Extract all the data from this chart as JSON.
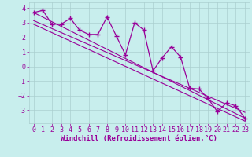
{
  "x_data": [
    0,
    1,
    2,
    3,
    4,
    5,
    6,
    7,
    8,
    9,
    10,
    11,
    12,
    13,
    14,
    15,
    16,
    17,
    18,
    19,
    20,
    21,
    22,
    23
  ],
  "y_main": [
    3.7,
    3.85,
    2.9,
    2.9,
    3.3,
    2.5,
    2.2,
    2.2,
    3.4,
    2.1,
    0.8,
    3.0,
    2.5,
    -0.3,
    0.6,
    1.35,
    0.65,
    -1.5,
    -1.55,
    -2.2,
    -3.1,
    -2.5,
    -2.7,
    -3.55
  ],
  "reg_line1_x": [
    0,
    23
  ],
  "reg_line1_y": [
    3.7,
    -3.55
  ],
  "reg_line2_x": [
    0,
    23
  ],
  "reg_line2_y": [
    3.15,
    -3.15
  ],
  "reg_line3_x": [
    0,
    23
  ],
  "reg_line3_y": [
    2.9,
    -3.75
  ],
  "color": "#990099",
  "bg_color": "#c8eeed",
  "grid_color": "#aacfcf",
  "xlabel": "Windchill (Refroidissement éolien,°C)",
  "xlim": [
    -0.5,
    23.5
  ],
  "ylim": [
    -3.9,
    4.4
  ],
  "yticks": [
    -3,
    -2,
    -1,
    0,
    1,
    2,
    3,
    4
  ],
  "xticks": [
    0,
    1,
    2,
    3,
    4,
    5,
    6,
    7,
    8,
    9,
    10,
    11,
    12,
    13,
    14,
    15,
    16,
    17,
    18,
    19,
    20,
    21,
    22,
    23
  ],
  "marker": "+",
  "markersize": 4,
  "linewidth": 0.9,
  "xlabel_fontsize": 6.5,
  "tick_fontsize": 6.0,
  "reg_linewidth": 0.8
}
